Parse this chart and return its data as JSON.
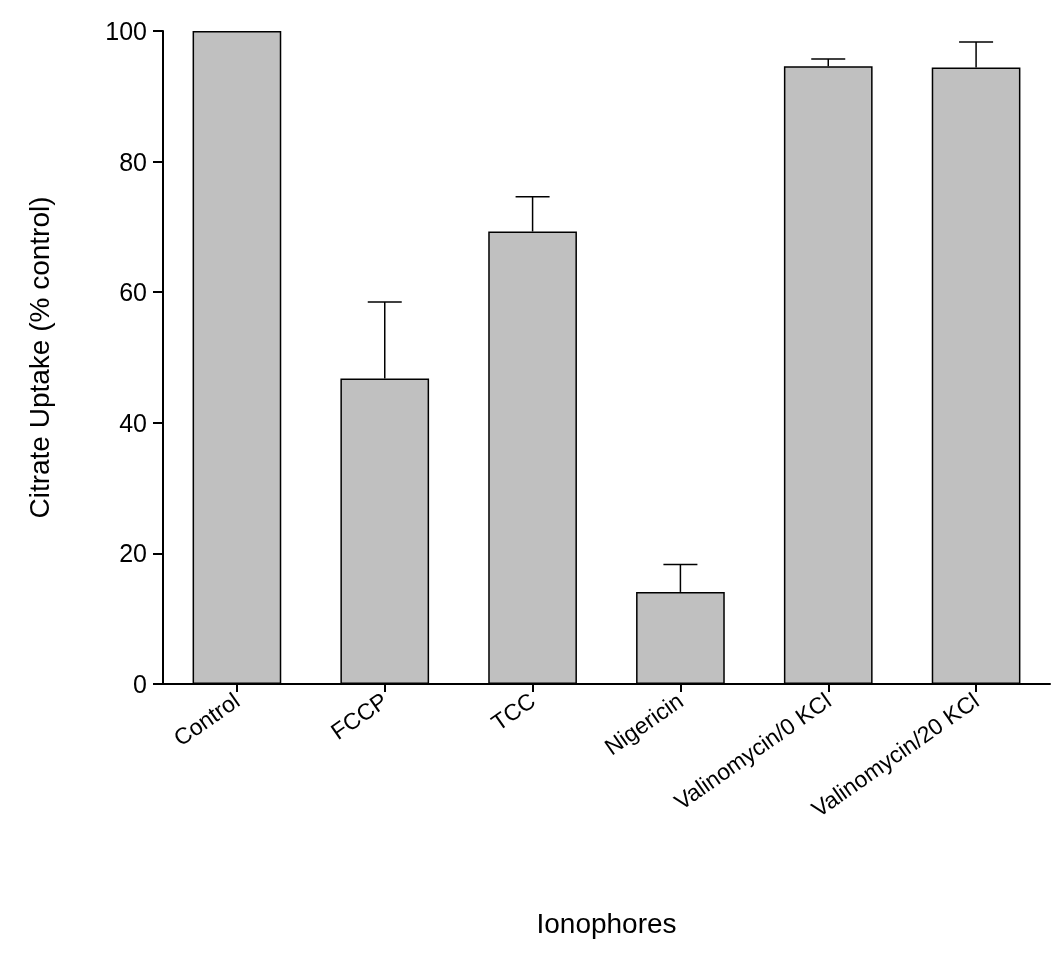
{
  "chart_data": {
    "type": "bar",
    "xlabel": "Ionophores",
    "ylabel": "Citrate Uptake (% control)",
    "categories": [
      "Control",
      "FCCP",
      "TCC",
      "Nigericin",
      "Valinomycin/0 KCl",
      "Valinomycin/20 KCl"
    ],
    "values": [
      100,
      46.8,
      69.3,
      14.1,
      94.6,
      94.4
    ],
    "errors": [
      null,
      [
        46.8,
        58.5
      ],
      [
        69.3,
        74.6
      ],
      [
        14.1,
        18.3
      ],
      [
        94.6,
        95.7
      ],
      [
        94.4,
        98.3
      ]
    ],
    "color": "#c0c0c0",
    "ylim": [
      0,
      100
    ],
    "yticks": [
      0,
      20,
      40,
      60,
      80,
      100
    ],
    "grid": false
  }
}
